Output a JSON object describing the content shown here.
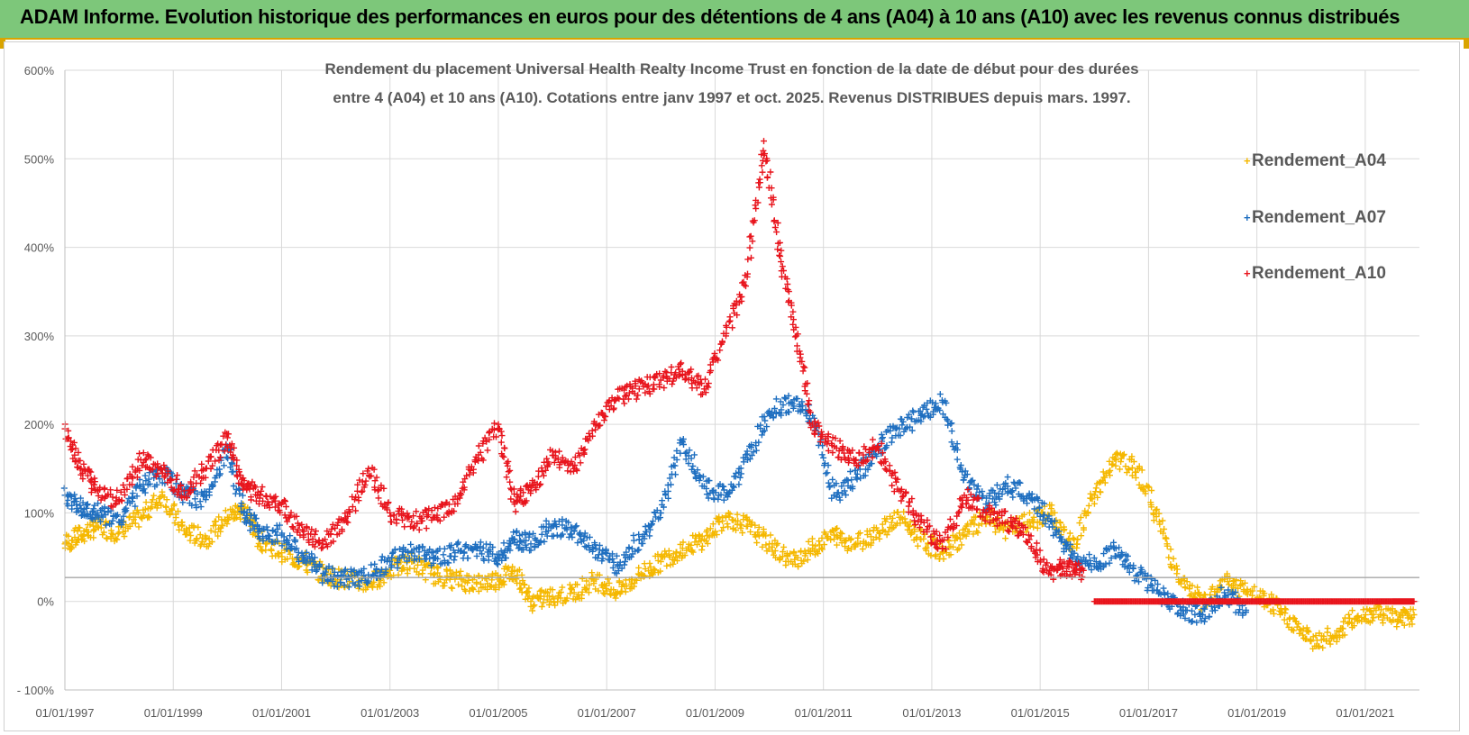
{
  "header": {
    "title": "ADAM Informe. Evolution historique des performances en euros pour des détentions de 4 ans (A04) à 10 ans (A10) avec les revenus connus distribués"
  },
  "chart_data": {
    "type": "scatter",
    "title_lines": [
      "Rendement du placement Universal Health Realty Income Trust en fonction de la date de début pour des durées",
      "entre 4 (A04) et 10 ans (A10). Cotations entre janv 1997 et oct. 2025. Revenus DISTRIBUES depuis mars. 1997."
    ],
    "xlabel": "",
    "ylabel": "",
    "x_range": [
      1997.0,
      2022.0
    ],
    "ylim": [
      -100,
      600
    ],
    "y_ticks": [
      -100,
      0,
      100,
      200,
      300,
      400,
      500,
      600
    ],
    "y_tick_labels": [
      "- 100%",
      "0%",
      "100%",
      "200%",
      "300%",
      "400%",
      "500%",
      "600%"
    ],
    "x_ticks": [
      1997,
      1999,
      2001,
      2003,
      2005,
      2007,
      2009,
      2011,
      2013,
      2015,
      2017,
      2019,
      2021
    ],
    "x_tick_labels": [
      "01/01/1997",
      "01/01/1999",
      "01/01/2001",
      "01/01/2003",
      "01/01/2005",
      "01/01/2007",
      "01/01/2009",
      "01/01/2011",
      "01/01/2013",
      "01/01/2015",
      "01/01/2017",
      "01/01/2019",
      "01/01/2021"
    ],
    "reference_line_y": 27,
    "grid": true,
    "legend_position": "top-right",
    "series": [
      {
        "name": "Rendement_A04",
        "color": "#f5b800",
        "x": [
          1997.0,
          1997.3,
          1997.6,
          1998.0,
          1998.4,
          1998.8,
          1999.2,
          1999.6,
          2000.0,
          2000.3,
          2000.6,
          2001.0,
          2001.4,
          2001.8,
          2002.2,
          2002.6,
          2003.0,
          2003.4,
          2003.8,
          2004.2,
          2004.6,
          2005.0,
          2005.3,
          2005.6,
          2006.0,
          2006.4,
          2006.8,
          2007.2,
          2007.6,
          2008.0,
          2008.4,
          2008.8,
          2009.2,
          2009.6,
          2010.0,
          2010.4,
          2010.8,
          2011.2,
          2011.6,
          2012.0,
          2012.4,
          2012.8,
          2013.2,
          2013.6,
          2014.0,
          2014.4,
          2014.8,
          2015.2,
          2015.6,
          2016.0,
          2016.4,
          2016.8,
          2017.2,
          2017.6,
          2018.0,
          2018.4,
          2018.8,
          2019.2,
          2019.6,
          2020.0,
          2020.4,
          2020.8,
          2021.2,
          2021.6,
          2021.9
        ],
        "y": [
          65,
          75,
          85,
          78,
          95,
          120,
          80,
          70,
          95,
          105,
          70,
          55,
          45,
          30,
          25,
          20,
          35,
          45,
          30,
          25,
          20,
          25,
          35,
          0,
          5,
          10,
          25,
          10,
          30,
          45,
          60,
          70,
          95,
          85,
          65,
          45,
          60,
          75,
          65,
          80,
          95,
          70,
          55,
          75,
          95,
          80,
          90,
          100,
          60,
          120,
          160,
          150,
          90,
          20,
          0,
          25,
          10,
          0,
          -20,
          -45,
          -40,
          -20,
          -10,
          -20,
          -15
        ]
      },
      {
        "name": "Rendement_A07",
        "color": "#1f6fc0",
        "x": [
          1997.0,
          1997.3,
          1997.6,
          1998.0,
          1998.4,
          1998.8,
          1999.2,
          1999.6,
          2000.0,
          2000.3,
          2000.6,
          2001.0,
          2001.4,
          2001.8,
          2002.2,
          2002.6,
          2003.0,
          2003.4,
          2003.8,
          2004.2,
          2004.6,
          2005.0,
          2005.3,
          2005.6,
          2006.0,
          2006.4,
          2006.8,
          2007.2,
          2007.6,
          2008.0,
          2008.4,
          2008.8,
          2009.2,
          2009.6,
          2010.0,
          2010.4,
          2010.8,
          2011.2,
          2011.6,
          2012.0,
          2012.4,
          2012.8,
          2013.2,
          2013.6,
          2014.0,
          2014.4,
          2014.8,
          2015.2,
          2015.6,
          2016.0,
          2016.4,
          2016.8,
          2017.2,
          2017.6,
          2018.0,
          2018.4,
          2018.8
        ],
        "y": [
          120,
          105,
          100,
          90,
          130,
          145,
          120,
          115,
          175,
          100,
          80,
          75,
          50,
          30,
          25,
          30,
          45,
          55,
          50,
          55,
          60,
          50,
          70,
          65,
          85,
          80,
          60,
          40,
          70,
          100,
          180,
          130,
          120,
          160,
          215,
          225,
          210,
          120,
          140,
          175,
          195,
          210,
          225,
          140,
          110,
          130,
          120,
          90,
          50,
          40,
          60,
          30,
          10,
          -10,
          -15,
          10,
          -10
        ]
      },
      {
        "name": "Rendement_A10",
        "color": "#e8141c",
        "x": [
          1997.0,
          1997.3,
          1997.6,
          1998.0,
          1998.4,
          1998.8,
          1999.2,
          1999.6,
          2000.0,
          2000.3,
          2000.6,
          2001.0,
          2001.4,
          2001.8,
          2002.2,
          2002.6,
          2003.0,
          2003.4,
          2003.8,
          2004.2,
          2004.6,
          2005.0,
          2005.3,
          2005.6,
          2006.0,
          2006.4,
          2006.8,
          2007.2,
          2007.6,
          2008.0,
          2008.4,
          2008.8,
          2009.2,
          2009.6,
          2009.9,
          2010.2,
          2010.5,
          2010.8,
          2011.2,
          2011.6,
          2012.0,
          2012.4,
          2012.8,
          2013.2,
          2013.6,
          2014.0,
          2014.4,
          2014.8,
          2015.2,
          2015.5,
          2015.8
        ],
        "y": [
          195,
          150,
          125,
          115,
          160,
          145,
          125,
          150,
          185,
          130,
          120,
          110,
          75,
          70,
          90,
          150,
          100,
          90,
          95,
          110,
          160,
          200,
          110,
          125,
          165,
          150,
          200,
          230,
          240,
          250,
          260,
          240,
          300,
          370,
          520,
          390,
          300,
          200,
          175,
          160,
          175,
          125,
          90,
          60,
          120,
          100,
          90,
          70,
          30,
          40,
          35
        ]
      },
      {
        "name": "Rendement_A10",
        "color": "#e8141c",
        "x": [
          2016.0,
          2016.5,
          2017.0,
          2017.5,
          2018.0,
          2018.5,
          2019.0,
          2019.5,
          2020.0,
          2020.5,
          2021.0,
          2021.5,
          2021.9
        ],
        "y": [
          0,
          0,
          0,
          0,
          0,
          0,
          0,
          0,
          0,
          0,
          0,
          0,
          0
        ]
      }
    ]
  },
  "legend": {
    "items": [
      {
        "label": "Rendement_A04",
        "color": "#f5b800"
      },
      {
        "label": "Rendement_A07",
        "color": "#1f6fc0"
      },
      {
        "label": "Rendement_A10",
        "color": "#e8141c"
      }
    ]
  }
}
